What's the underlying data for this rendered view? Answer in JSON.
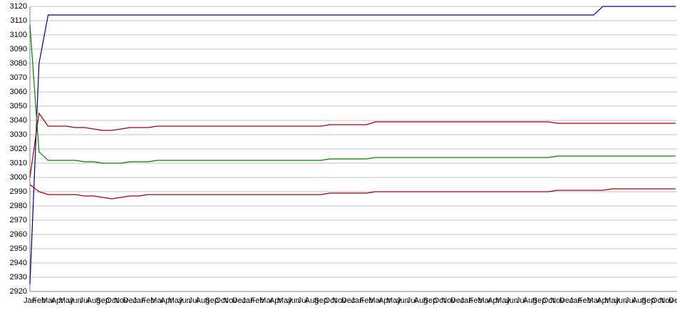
{
  "chart_data": {
    "type": "line",
    "categories": [
      "Jan",
      "Feb",
      "Mar",
      "Apr",
      "May",
      "Jun",
      "Jul",
      "Aug",
      "Sep",
      "Oct",
      "Nov",
      "Dec",
      "Jan",
      "Feb",
      "Mar",
      "Apr",
      "May",
      "Jun",
      "Jul",
      "Aug",
      "Sep",
      "Oct",
      "Nov",
      "Dec",
      "Jan",
      "Feb",
      "Mar",
      "Apr",
      "May",
      "Jun",
      "Jul",
      "Aug",
      "Sep",
      "Oct",
      "Nov",
      "Dec",
      "Jan",
      "Feb",
      "Mar",
      "Apr",
      "May",
      "Jun",
      "Jul",
      "Aug",
      "Sep",
      "Oct",
      "Nov",
      "Dec",
      "Jan",
      "Feb",
      "Mar",
      "Apr",
      "May",
      "Jun",
      "Jul",
      "Aug",
      "Sep",
      "Oct",
      "Nov",
      "Dec",
      "Jan",
      "Feb",
      "Mar",
      "Apr",
      "May",
      "Jun",
      "Jul",
      "Aug",
      "Sep",
      "Oct",
      "Nov",
      "Dec"
    ],
    "series": [
      {
        "color": "#000080",
        "values": [
          2925,
          3080,
          3114,
          3114,
          3114,
          3114,
          3114,
          3114,
          3114,
          3114,
          3114,
          3114,
          3114,
          3114,
          3114,
          3114,
          3114,
          3114,
          3114,
          3114,
          3114,
          3114,
          3114,
          3114,
          3114,
          3114,
          3114,
          3114,
          3114,
          3114,
          3114,
          3114,
          3114,
          3114,
          3114,
          3114,
          3114,
          3114,
          3114,
          3114,
          3114,
          3114,
          3114,
          3114,
          3114,
          3114,
          3114,
          3114,
          3114,
          3114,
          3114,
          3114,
          3114,
          3114,
          3114,
          3114,
          3114,
          3114,
          3114,
          3114,
          3114,
          3114,
          3114,
          3120,
          3120,
          3120,
          3120,
          3120,
          3120,
          3120,
          3120,
          3120
        ]
      },
      {
        "color": "#a00000",
        "values": [
          3000,
          3045,
          3036,
          3036,
          3036,
          3035,
          3035,
          3034,
          3033,
          3033,
          3034,
          3035,
          3035,
          3035,
          3036,
          3036,
          3036,
          3036,
          3036,
          3036,
          3036,
          3036,
          3036,
          3036,
          3036,
          3036,
          3036,
          3036,
          3036,
          3036,
          3036,
          3036,
          3036,
          3037,
          3037,
          3037,
          3037,
          3037,
          3039,
          3039,
          3039,
          3039,
          3039,
          3039,
          3039,
          3039,
          3039,
          3039,
          3039,
          3039,
          3039,
          3039,
          3039,
          3039,
          3039,
          3039,
          3039,
          3039,
          3038,
          3038,
          3038,
          3038,
          3038,
          3038,
          3038,
          3038,
          3038,
          3038,
          3038,
          3038,
          3038,
          3038
        ]
      },
      {
        "color": "#008000",
        "values": [
          3107,
          3018,
          3012,
          3012,
          3012,
          3012,
          3011,
          3011,
          3010,
          3010,
          3010,
          3011,
          3011,
          3011,
          3012,
          3012,
          3012,
          3012,
          3012,
          3012,
          3012,
          3012,
          3012,
          3012,
          3012,
          3012,
          3012,
          3012,
          3012,
          3012,
          3012,
          3012,
          3012,
          3013,
          3013,
          3013,
          3013,
          3013,
          3014,
          3014,
          3014,
          3014,
          3014,
          3014,
          3014,
          3014,
          3014,
          3014,
          3014,
          3014,
          3014,
          3014,
          3014,
          3014,
          3014,
          3014,
          3014,
          3014,
          3015,
          3015,
          3015,
          3015,
          3015,
          3015,
          3015,
          3015,
          3015,
          3015,
          3015,
          3015,
          3015,
          3015
        ]
      },
      {
        "color": "#a00000",
        "values": [
          2995,
          2990,
          2988,
          2988,
          2988,
          2988,
          2987,
          2987,
          2986,
          2985,
          2986,
          2987,
          2987,
          2988,
          2988,
          2988,
          2988,
          2988,
          2988,
          2988,
          2988,
          2988,
          2988,
          2988,
          2988,
          2988,
          2988,
          2988,
          2988,
          2988,
          2988,
          2988,
          2988,
          2989,
          2989,
          2989,
          2989,
          2989,
          2990,
          2990,
          2990,
          2990,
          2990,
          2990,
          2990,
          2990,
          2990,
          2990,
          2990,
          2990,
          2990,
          2990,
          2990,
          2990,
          2990,
          2990,
          2990,
          2990,
          2991,
          2991,
          2991,
          2991,
          2991,
          2991,
          2992,
          2992,
          2992,
          2992,
          2992,
          2992,
          2992,
          2992
        ]
      }
    ],
    "ylim": [
      2920,
      3120
    ],
    "yticks": [
      2920,
      2930,
      2940,
      2950,
      2960,
      2970,
      2980,
      2990,
      3000,
      3010,
      3020,
      3030,
      3040,
      3050,
      3060,
      3070,
      3080,
      3090,
      3100,
      3110,
      3120
    ],
    "grid": true
  }
}
